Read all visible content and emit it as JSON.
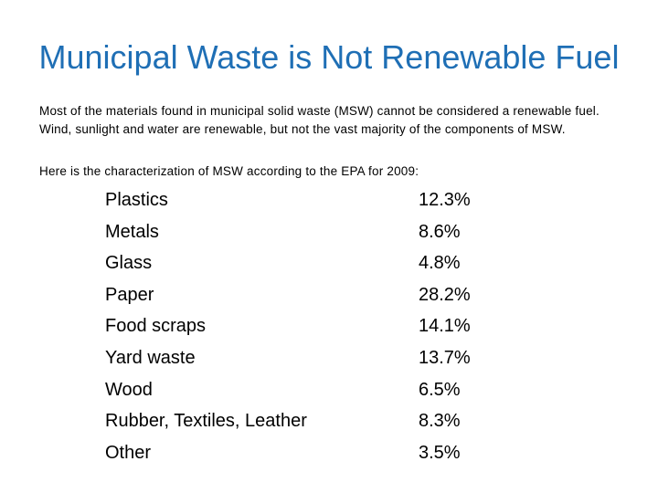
{
  "slide": {
    "title": "Municipal Waste is Not Renewable Fuel",
    "paragraph_1": "Most of the materials found in municipal solid waste (MSW) cannot be considered a renewable fuel.",
    "paragraph_2": "Wind, sunlight and water are renewable, but not the vast majority of the components of MSW.",
    "source_line": "Here is the characterization of MSW according to the EPA for 2009:"
  },
  "waste_table": {
    "rows": [
      {
        "category": "Plastics",
        "percent": "12.3%"
      },
      {
        "category": "Metals",
        "percent": "8.6%"
      },
      {
        "category": "Glass",
        "percent": "4.8%"
      },
      {
        "category": "Paper",
        "percent": "28.2%"
      },
      {
        "category": "Food scraps",
        "percent": "14.1%"
      },
      {
        "category": "Yard waste",
        "percent": "13.7%"
      },
      {
        "category": "Wood",
        "percent": "6.5%"
      },
      {
        "category": "Rubber, Textiles, Leather",
        "percent": "8.3%"
      },
      {
        "category": "Other",
        "percent": "3.5%"
      }
    ]
  },
  "colors": {
    "title": "#1f6fb5",
    "text": "#000000",
    "background": "#ffffff"
  }
}
